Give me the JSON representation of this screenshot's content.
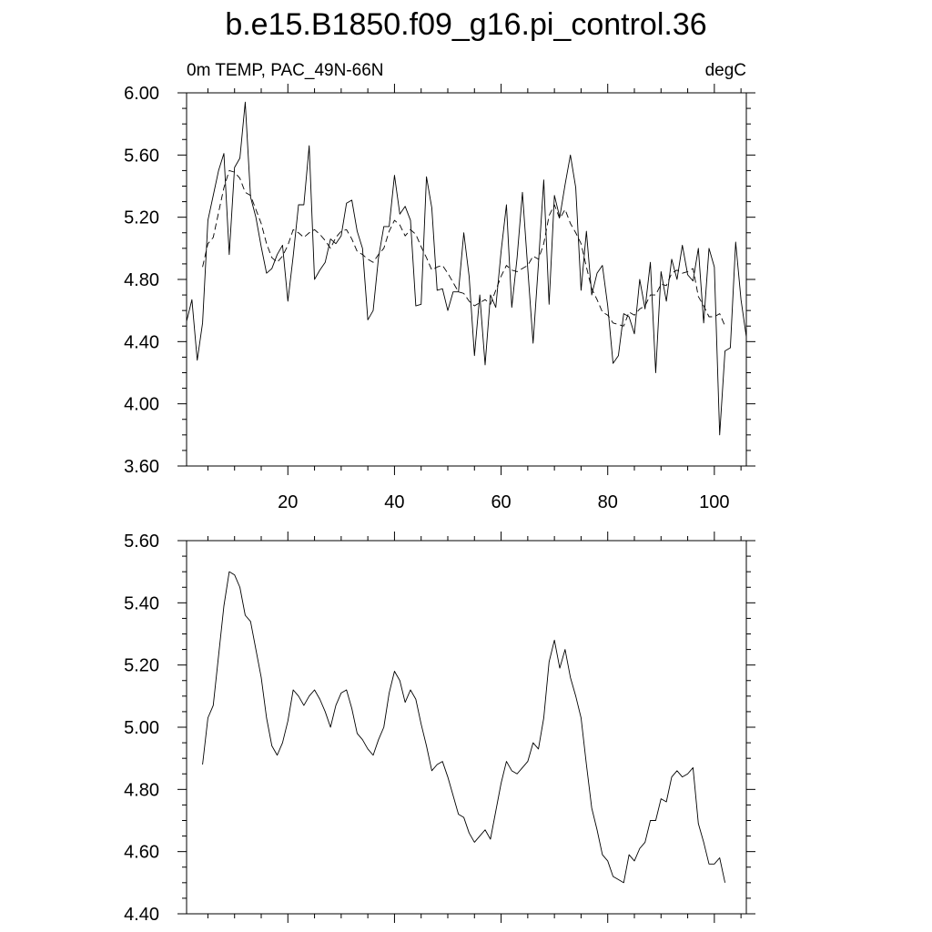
{
  "title": "b.e15.B1850.f09_g16.pi_control.36",
  "colors": {
    "line": "#000000",
    "background": "#ffffff"
  },
  "chart_data": [
    {
      "type": "line",
      "left_label": "0m TEMP, PAC_49N-66N",
      "right_label": "degC",
      "xlim": [
        1,
        106
      ],
      "ylim": [
        3.6,
        6.0
      ],
      "x_ticks": [
        20,
        40,
        60,
        80,
        100
      ],
      "y_ticks": [
        3.6,
        4.0,
        4.4,
        4.8,
        5.2,
        5.6,
        6.0
      ],
      "y_tick_labels": [
        "3.60",
        "4.00",
        "4.40",
        "4.80",
        "5.20",
        "5.60",
        "6.00"
      ],
      "show_x_tick_labels": true,
      "series": [
        {
          "style": "solid",
          "x_start": 1,
          "values": [
            4.53,
            4.67,
            4.28,
            4.52,
            5.18,
            5.34,
            5.5,
            5.61,
            4.96,
            5.52,
            5.58,
            5.94,
            5.33,
            5.2,
            5.01,
            4.84,
            4.87,
            4.96,
            5.02,
            4.66,
            4.95,
            5.28,
            5.28,
            5.66,
            4.8,
            4.86,
            4.91,
            5.06,
            5.03,
            5.08,
            5.29,
            5.31,
            5.11,
            5.0,
            4.54,
            4.6,
            4.94,
            5.14,
            5.14,
            5.47,
            5.22,
            5.27,
            5.18,
            4.63,
            4.64,
            5.46,
            5.26,
            4.73,
            4.74,
            4.6,
            4.72,
            4.72,
            5.1,
            4.82,
            4.31,
            4.7,
            4.25,
            4.7,
            4.62,
            4.98,
            5.28,
            4.62,
            4.94,
            5.36,
            4.87,
            4.39,
            4.9,
            5.44,
            4.64,
            5.34,
            5.2,
            5.41,
            5.6,
            5.39,
            4.73,
            5.11,
            4.7,
            4.84,
            4.89,
            4.63,
            4.26,
            4.31,
            4.58,
            4.56,
            4.45,
            4.8,
            4.61,
            4.91,
            4.2,
            4.85,
            4.66,
            4.93,
            4.8,
            5.02,
            4.83,
            4.79,
            5.0,
            4.52,
            5.0,
            4.88,
            3.8,
            4.34,
            4.36,
            5.04,
            4.67,
            4.43
          ]
        },
        {
          "style": "dashed",
          "x_start": 4,
          "values": [
            4.88,
            5.03,
            5.07,
            5.23,
            5.39,
            5.5,
            5.49,
            5.45,
            5.36,
            5.34,
            5.25,
            5.16,
            5.03,
            4.94,
            4.91,
            4.95,
            5.02,
            5.12,
            5.1,
            5.07,
            5.1,
            5.12,
            5.09,
            5.05,
            5.0,
            5.07,
            5.11,
            5.12,
            5.06,
            4.98,
            4.96,
            4.93,
            4.91,
            4.96,
            5.0,
            5.11,
            5.18,
            5.15,
            5.08,
            5.12,
            5.09,
            5.01,
            4.94,
            4.86,
            4.88,
            4.89,
            4.84,
            4.78,
            4.72,
            4.71,
            4.66,
            4.63,
            4.65,
            4.67,
            4.64,
            4.73,
            4.82,
            4.89,
            4.86,
            4.85,
            4.87,
            4.89,
            4.95,
            4.93,
            5.03,
            5.21,
            5.28,
            5.19,
            5.25,
            5.16,
            5.1,
            5.03,
            4.88,
            4.74,
            4.67,
            4.59,
            4.57,
            4.52,
            4.51,
            4.5,
            4.59,
            4.57,
            4.61,
            4.63,
            4.7,
            4.7,
            4.77,
            4.76,
            4.84,
            4.86,
            4.84,
            4.85,
            4.87,
            4.69,
            4.63,
            4.56,
            4.56,
            4.58,
            4.5
          ]
        }
      ]
    },
    {
      "type": "line",
      "xlim": [
        1,
        106
      ],
      "ylim": [
        4.4,
        5.6
      ],
      "x_ticks": [
        20,
        40,
        60,
        80,
        100
      ],
      "y_ticks": [
        4.4,
        4.6,
        4.8,
        5.0,
        5.2,
        5.4,
        5.6
      ],
      "y_tick_labels": [
        "4.40",
        "4.60",
        "4.80",
        "5.00",
        "5.20",
        "5.40",
        "5.60"
      ],
      "show_x_tick_labels": false,
      "series": [
        {
          "style": "solid",
          "x_start": 4,
          "values": [
            4.88,
            5.03,
            5.07,
            5.23,
            5.39,
            5.5,
            5.49,
            5.45,
            5.36,
            5.34,
            5.25,
            5.16,
            5.03,
            4.94,
            4.91,
            4.95,
            5.02,
            5.12,
            5.1,
            5.07,
            5.1,
            5.12,
            5.09,
            5.05,
            5.0,
            5.07,
            5.11,
            5.12,
            5.06,
            4.98,
            4.96,
            4.93,
            4.91,
            4.96,
            5.0,
            5.11,
            5.18,
            5.15,
            5.08,
            5.12,
            5.09,
            5.01,
            4.94,
            4.86,
            4.88,
            4.89,
            4.84,
            4.78,
            4.72,
            4.71,
            4.66,
            4.63,
            4.65,
            4.67,
            4.64,
            4.73,
            4.82,
            4.89,
            4.86,
            4.85,
            4.87,
            4.89,
            4.95,
            4.93,
            5.03,
            5.21,
            5.28,
            5.19,
            5.25,
            5.16,
            5.1,
            5.03,
            4.88,
            4.74,
            4.67,
            4.59,
            4.57,
            4.52,
            4.51,
            4.5,
            4.59,
            4.57,
            4.61,
            4.63,
            4.7,
            4.7,
            4.77,
            4.76,
            4.84,
            4.86,
            4.84,
            4.85,
            4.87,
            4.69,
            4.63,
            4.56,
            4.56,
            4.58,
            4.5
          ]
        }
      ]
    }
  ]
}
